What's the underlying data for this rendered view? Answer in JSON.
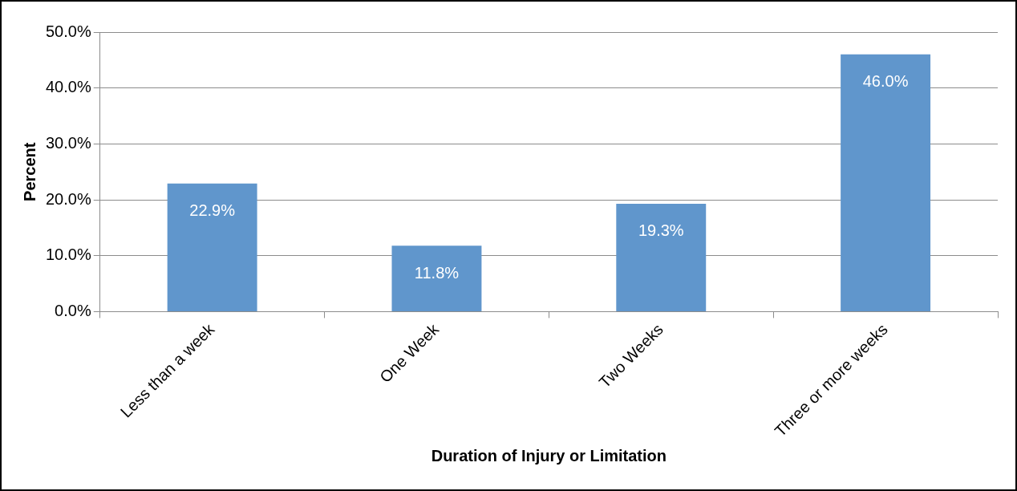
{
  "chart_data": {
    "type": "bar",
    "xlabel": "Duration of Injury or Limitation",
    "ylabel": "Percent",
    "categories": [
      "Less than a week",
      "One Week",
      "Two Weeks",
      "Three or more weeks"
    ],
    "values": [
      22.9,
      11.8,
      19.3,
      46.0
    ],
    "color": "#6096cc",
    "value_labels": [
      "22.9%",
      "11.8%",
      "19.3%",
      "46.0%"
    ],
    "ylim": [
      0,
      50
    ],
    "yticks": [
      {
        "value": 0,
        "label": "0.0%"
      },
      {
        "value": 10,
        "label": "10.0%"
      },
      {
        "value": 20,
        "label": "20.0%"
      },
      {
        "value": 30,
        "label": "30.0%"
      },
      {
        "value": 40,
        "label": "40.0%"
      },
      {
        "value": 50,
        "label": "50.0%"
      }
    ],
    "grid": "y",
    "legend": false
  }
}
